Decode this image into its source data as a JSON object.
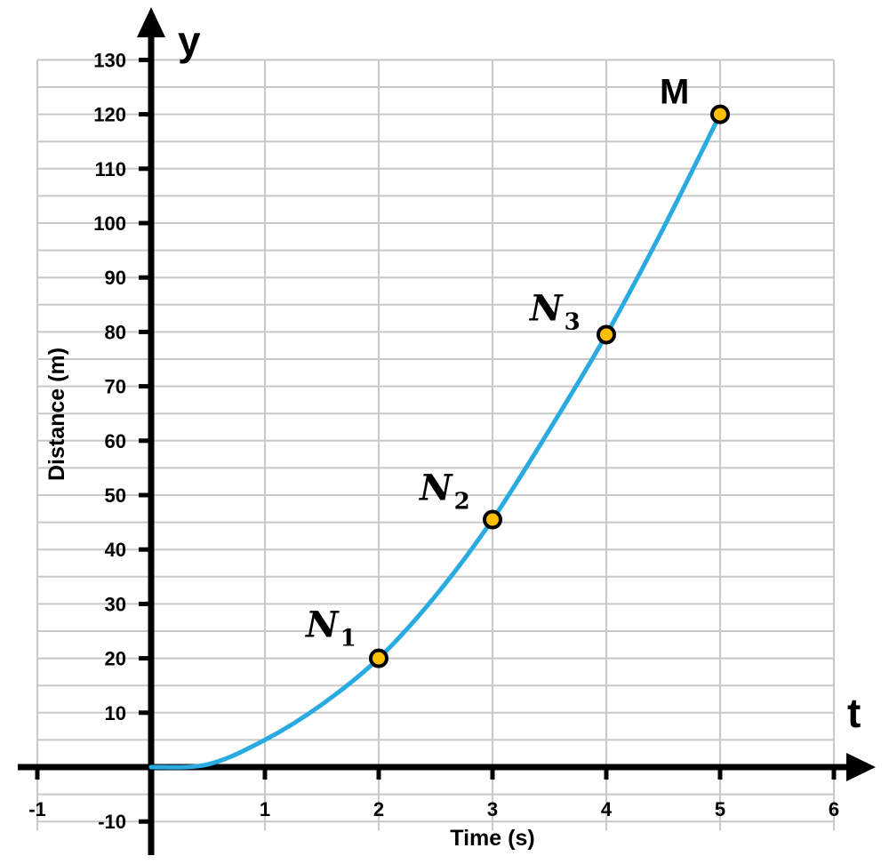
{
  "chart_data": {
    "type": "line",
    "xlabel": "Time (s)",
    "ylabel": "Distance (m)",
    "x_axis_letter": "t",
    "y_axis_letter": "y",
    "xlim": [
      -1,
      6
    ],
    "ylim": [
      -10,
      130
    ],
    "x_ticks": [
      -1,
      1,
      2,
      3,
      4,
      5,
      6
    ],
    "x_tick_labels": [
      "-1",
      "1",
      "2",
      "3",
      "4",
      "5",
      "6"
    ],
    "y_ticks": [
      -10,
      10,
      20,
      30,
      40,
      50,
      60,
      70,
      80,
      90,
      100,
      110,
      120,
      130
    ],
    "y_tick_labels": [
      "-10",
      "10",
      "20",
      "30",
      "40",
      "50",
      "60",
      "70",
      "80",
      "90",
      "100",
      "110",
      "120",
      "130"
    ],
    "grid": true,
    "curve": {
      "color": "#29abe2",
      "x": [
        0,
        0.5,
        1,
        1.5,
        2,
        2.5,
        3,
        3.5,
        4,
        4.5,
        5
      ],
      "y": [
        0,
        0.5,
        5,
        11.5,
        20,
        31.5,
        45.5,
        62,
        79.5,
        99,
        120
      ]
    },
    "points": [
      {
        "name": "N",
        "sub": "1",
        "x": 2,
        "y": 20
      },
      {
        "name": "N",
        "sub": "2",
        "x": 3,
        "y": 45.5
      },
      {
        "name": "N",
        "sub": "3",
        "x": 4,
        "y": 79.5
      },
      {
        "name": "M",
        "sub": "",
        "x": 5,
        "y": 120
      }
    ],
    "point_fill": "#ffc000",
    "point_stroke": "#000000"
  }
}
